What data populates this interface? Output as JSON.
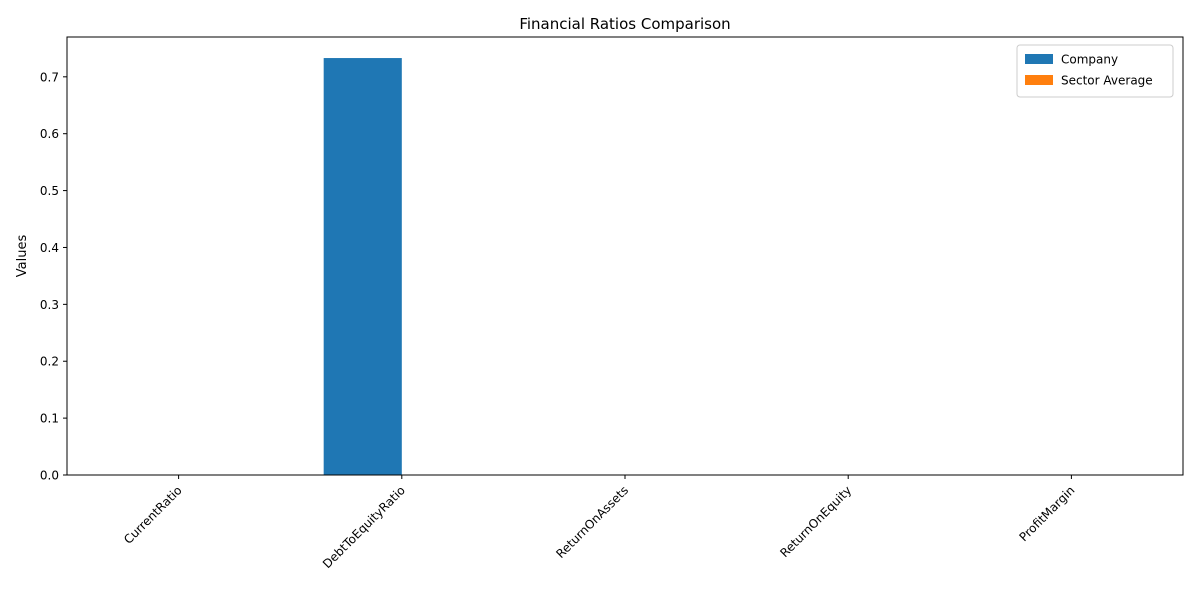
{
  "chart_data": {
    "type": "bar",
    "title": "Financial Ratios Comparison",
    "xlabel": "",
    "ylabel": "Values",
    "categories": [
      "CurrentRatio",
      "DebtToEquityRatio",
      "ReturnOnAssets",
      "ReturnOnEquity",
      "ProfitMargin"
    ],
    "series": [
      {
        "name": "Company",
        "color": "#1f77b4",
        "values": [
          0,
          0.733,
          0,
          0,
          0
        ]
      },
      {
        "name": "Sector Average",
        "color": "#ff7f0e",
        "values": [
          0,
          0,
          0,
          0,
          0
        ]
      }
    ],
    "ylim": [
      0,
      0.77
    ],
    "yticks": [
      0.0,
      0.1,
      0.2,
      0.3,
      0.4,
      0.5,
      0.6,
      0.7
    ],
    "ytick_labels": [
      "0.0",
      "0.1",
      "0.2",
      "0.3",
      "0.4",
      "0.5",
      "0.6",
      "0.7"
    ],
    "grid": false,
    "legend_position": "top-right"
  }
}
